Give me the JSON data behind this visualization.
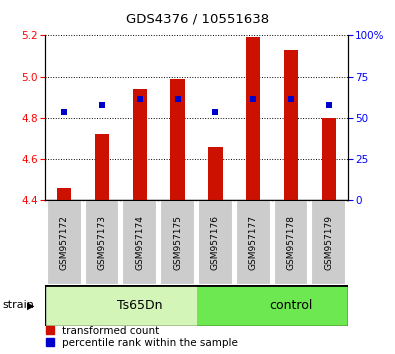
{
  "title": "GDS4376 / 10551638",
  "samples": [
    "GSM957172",
    "GSM957173",
    "GSM957174",
    "GSM957175",
    "GSM957176",
    "GSM957177",
    "GSM957178",
    "GSM957179"
  ],
  "red_bar_tops": [
    4.46,
    4.72,
    4.94,
    4.99,
    4.66,
    5.19,
    5.13,
    4.8
  ],
  "red_bar_bottom": 4.4,
  "blue_marker_values": [
    4.83,
    4.86,
    4.89,
    4.89,
    4.83,
    4.89,
    4.89,
    4.86
  ],
  "ylim_left": [
    4.4,
    5.2
  ],
  "ylim_right": [
    0,
    100
  ],
  "yticks_left": [
    4.4,
    4.6,
    4.8,
    5.0,
    5.2
  ],
  "yticks_right": [
    0,
    25,
    50,
    75,
    100
  ],
  "groups": [
    {
      "label": "Ts65Dn",
      "start": 0,
      "end": 4,
      "color": "#d4f5b8"
    },
    {
      "label": "control",
      "start": 4,
      "end": 8,
      "color": "#6ee850"
    }
  ],
  "group_row_label": "strain",
  "bar_color": "#cc1100",
  "marker_color": "#0000cc",
  "sample_box_color": "#cccccc",
  "background_color": "#ffffff",
  "legend_items": [
    "transformed count",
    "percentile rank within the sample"
  ]
}
